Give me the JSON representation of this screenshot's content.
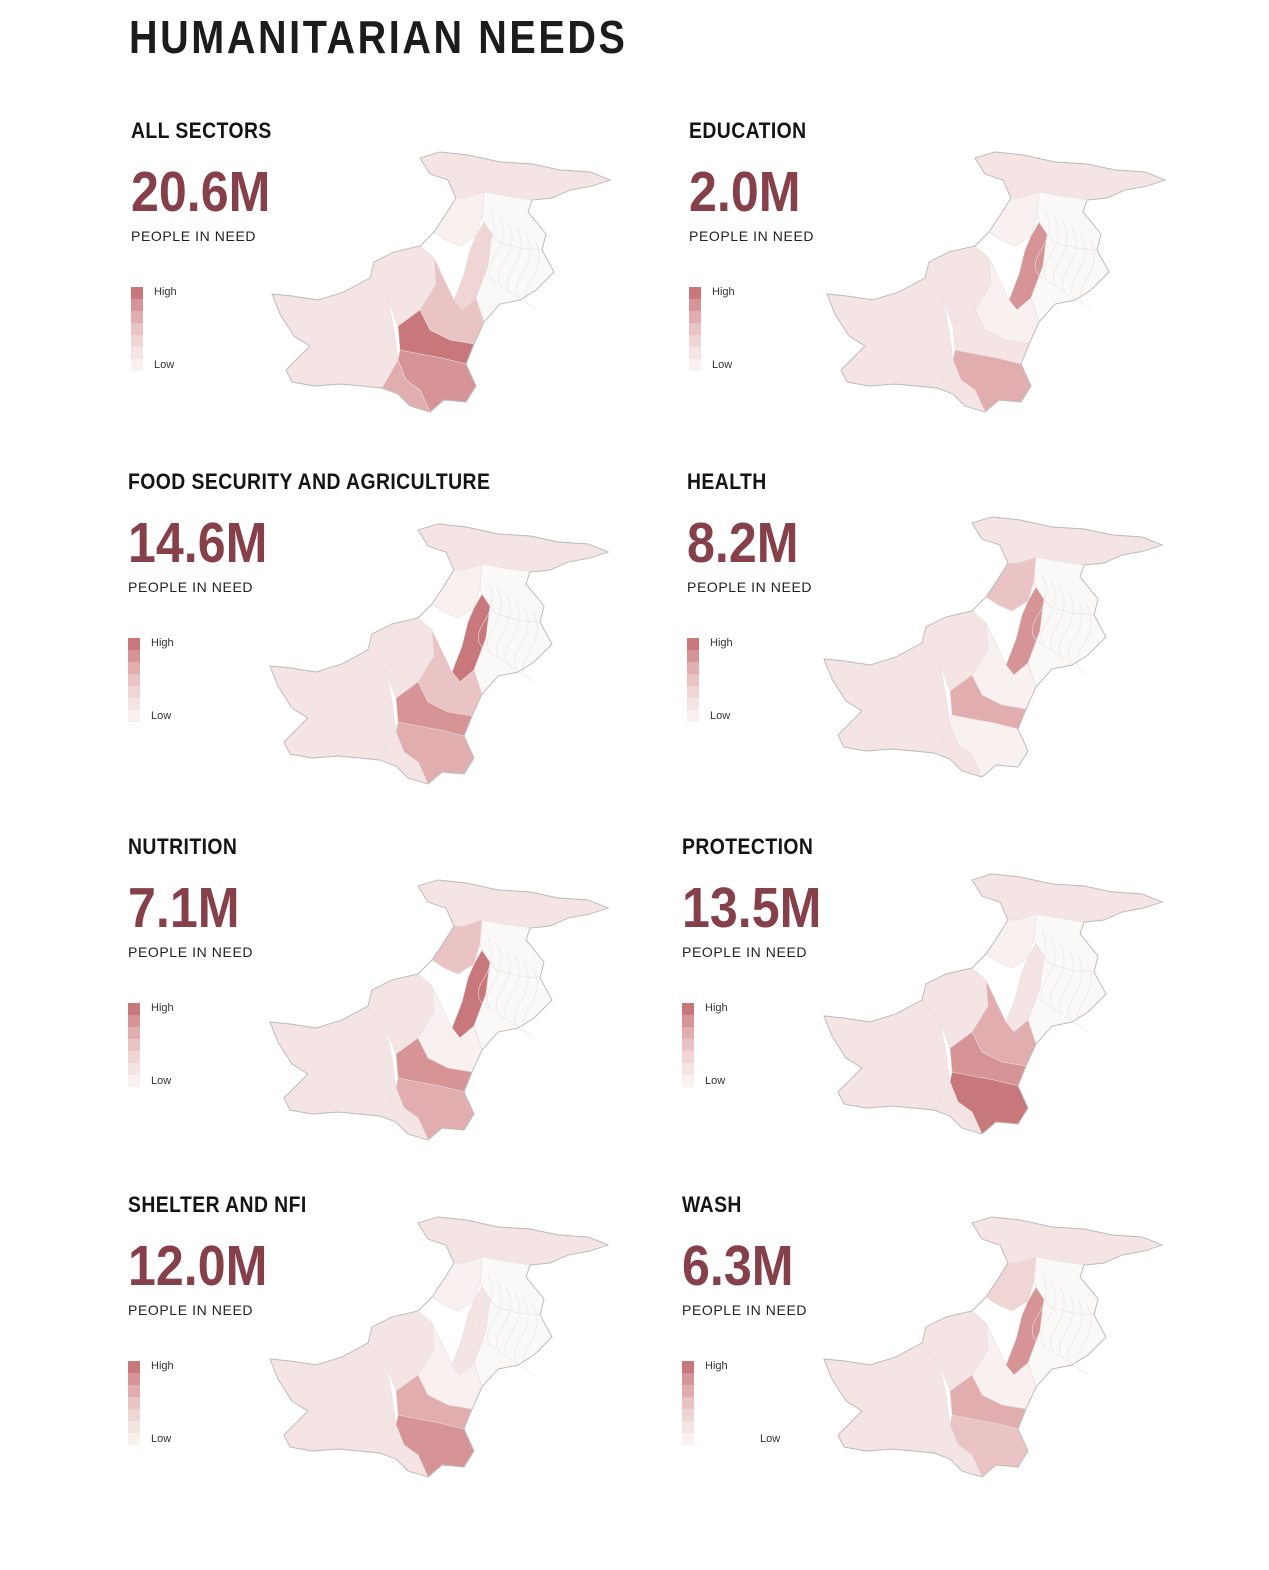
{
  "title": "HUMANITARIAN NEEDS",
  "legend": {
    "high": "High",
    "low": "Low",
    "ramp": [
      "#c8777b",
      "#d79497",
      "#e2adaf",
      "#eac3c4",
      "#f0d5d5",
      "#f5e4e4",
      "#f9f0f0"
    ]
  },
  "colors": {
    "accent": "#86404a",
    "outline": "#c9c9c9"
  },
  "panels": [
    {
      "sector": "ALL SECTORS",
      "value": "20.6M",
      "label": "PEOPLE IN NEED",
      "hot": [
        "sindh-north",
        "sindh-central",
        "sindh-south",
        "punjab-south",
        "punjab-west-strip"
      ],
      "level": 5
    },
    {
      "sector": "EDUCATION",
      "value": "2.0M",
      "label": "PEOPLE IN NEED",
      "hot": [
        "punjab-west-strip",
        "sindh-central"
      ],
      "level": 4
    },
    {
      "sector": "FOOD SECURITY AND AGRICULTURE",
      "value": "14.6M",
      "label": "PEOPLE IN NEED",
      "hot": [
        "punjab-west-strip",
        "sindh-north",
        "sindh-central",
        "punjab-south"
      ],
      "level": 5
    },
    {
      "sector": "HEALTH",
      "value": "8.2M",
      "label": "PEOPLE IN NEED",
      "hot": [
        "punjab-west-strip",
        "sindh-north",
        "kp-south"
      ],
      "level": 4
    },
    {
      "sector": "NUTRITION",
      "value": "7.1M",
      "label": "PEOPLE IN NEED",
      "hot": [
        "punjab-west-strip",
        "sindh-north",
        "sindh-central",
        "kp-south"
      ],
      "level": 5
    },
    {
      "sector": "PROTECTION",
      "value": "13.5M",
      "label": "PEOPLE IN NEED",
      "hot": [
        "sindh-central",
        "sindh-north",
        "punjab-south"
      ],
      "level": 5
    },
    {
      "sector": "SHELTER AND NFI",
      "value": "12.0M",
      "label": "PEOPLE IN NEED",
      "hot": [
        "sindh-central",
        "sindh-north"
      ],
      "level": 4
    },
    {
      "sector": "WASH",
      "value": "6.3M",
      "label": "PEOPLE IN NEED",
      "hot": [
        "punjab-west-strip",
        "sindh-north",
        "sindh-central",
        "kp-south"
      ],
      "level": 4
    }
  ]
}
